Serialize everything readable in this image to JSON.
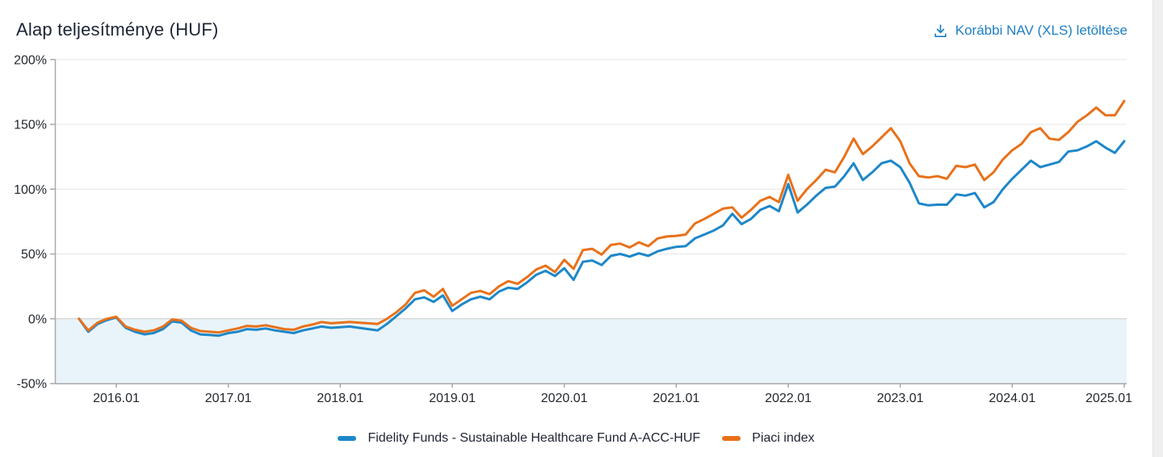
{
  "header": {
    "title": "Alap teljesítménye (HUF)",
    "download_link": {
      "label": "Korábbi NAV (XLS) letöltése",
      "icon": "download-icon"
    }
  },
  "colors": {
    "fund_line": "#1d87c9",
    "index_line": "#e8711a",
    "negative_area_fill": "#e9f4fa",
    "gridline": "#e6e6e6",
    "zero_line": "#c9c9c9",
    "axis_line": "#a9a9a9",
    "tick_label": "#23282e",
    "title_text": "#1c2434",
    "link": "#1e7fc2"
  },
  "chart_data": {
    "type": "line",
    "title": "Alap teljesítménye (HUF)",
    "x_unit": "month",
    "grid": "horizontal",
    "legend_position": "bottom",
    "negative_area_highlighted": true,
    "ylim": [
      -50,
      200
    ],
    "y_ticks": [
      200,
      150,
      100,
      50,
      0,
      -50
    ],
    "y_tick_suffix": "%",
    "x_tick_labels": [
      "2016.01",
      "2017.01",
      "2018.01",
      "2019.01",
      "2020.01",
      "2021.01",
      "2022.01",
      "2023.01",
      "2024.01",
      "2025.01"
    ],
    "x": [
      "2015-09",
      "2015-10",
      "2015-11",
      "2015-12",
      "2016-01",
      "2016-02",
      "2016-03",
      "2016-04",
      "2016-05",
      "2016-06",
      "2016-07",
      "2016-08",
      "2016-09",
      "2016-10",
      "2016-11",
      "2016-12",
      "2017-01",
      "2017-02",
      "2017-03",
      "2017-04",
      "2017-05",
      "2017-06",
      "2017-07",
      "2017-08",
      "2017-09",
      "2017-10",
      "2017-11",
      "2017-12",
      "2018-01",
      "2018-02",
      "2018-03",
      "2018-04",
      "2018-05",
      "2018-06",
      "2018-07",
      "2018-08",
      "2018-09",
      "2018-10",
      "2018-11",
      "2018-12",
      "2019-01",
      "2019-02",
      "2019-03",
      "2019-04",
      "2019-05",
      "2019-06",
      "2019-07",
      "2019-08",
      "2019-09",
      "2019-10",
      "2019-11",
      "2019-12",
      "2020-01",
      "2020-02",
      "2020-03",
      "2020-04",
      "2020-05",
      "2020-06",
      "2020-07",
      "2020-08",
      "2020-09",
      "2020-10",
      "2020-11",
      "2020-12",
      "2021-01",
      "2021-02",
      "2021-03",
      "2021-04",
      "2021-05",
      "2021-06",
      "2021-07",
      "2021-08",
      "2021-09",
      "2021-10",
      "2021-11",
      "2021-12",
      "2022-01",
      "2022-02",
      "2022-03",
      "2022-04",
      "2022-05",
      "2022-06",
      "2022-07",
      "2022-08",
      "2022-09",
      "2022-10",
      "2022-11",
      "2022-12",
      "2023-01",
      "2023-02",
      "2023-03",
      "2023-04",
      "2023-05",
      "2023-06",
      "2023-07",
      "2023-08",
      "2023-09",
      "2023-10",
      "2023-11",
      "2023-12",
      "2024-01",
      "2024-02",
      "2024-03",
      "2024-04",
      "2024-05",
      "2024-06",
      "2024-07",
      "2024-08",
      "2024-09",
      "2024-10",
      "2024-11",
      "2024-12",
      "2025-01"
    ],
    "series": [
      {
        "id": "fund",
        "name": "Fidelity Funds - Sustainable Healthcare Fund A-ACC-HUF",
        "color": "#1d87c9",
        "values": [
          0,
          -10,
          -4,
          -1,
          1,
          -7,
          -10,
          -12,
          -11,
          -8,
          -2,
          -3,
          -9,
          -12,
          -12.5,
          -13,
          -11,
          -10,
          -8,
          -8.5,
          -7.5,
          -9,
          -10,
          -11,
          -9,
          -7.5,
          -6,
          -7,
          -6.5,
          -6,
          -7,
          -8,
          -9,
          -4,
          2,
          8,
          15,
          16.5,
          13,
          18,
          6,
          11,
          15,
          17,
          15,
          21,
          24,
          23,
          28,
          34,
          37,
          33,
          39,
          30,
          44,
          45,
          41.5,
          48.5,
          50,
          48,
          50.5,
          48.5,
          52,
          54,
          55.5,
          56,
          62,
          65,
          68,
          72,
          81,
          73,
          77,
          84,
          87,
          83,
          104,
          82,
          88,
          95,
          101,
          102,
          110,
          120,
          107,
          113,
          120,
          122,
          117,
          105,
          89,
          87.5,
          88,
          88,
          96,
          95,
          97,
          86,
          90,
          100,
          108,
          115,
          122,
          117,
          119,
          121,
          129,
          130,
          133,
          137,
          132,
          128,
          137
        ]
      },
      {
        "id": "market-index",
        "name": "Piaci index",
        "color": "#e8711a",
        "values": [
          0,
          -9,
          -3,
          0,
          1.5,
          -6,
          -8.5,
          -10,
          -9,
          -6,
          -0.5,
          -1.5,
          -7,
          -9.5,
          -10,
          -10.5,
          -9,
          -7.5,
          -5.5,
          -6,
          -5,
          -6.5,
          -8,
          -8.5,
          -6,
          -4.5,
          -2.5,
          -3.5,
          -3,
          -2.5,
          -3,
          -3.5,
          -4,
          0,
          5,
          11,
          20,
          22,
          17,
          23,
          10,
          15,
          20,
          21.5,
          19,
          25,
          29,
          27,
          32,
          38,
          41,
          36,
          45.5,
          38.5,
          53,
          54,
          49.5,
          57,
          58,
          55,
          59,
          56,
          62,
          63.5,
          64,
          65,
          73.5,
          77,
          81,
          85,
          86,
          78,
          84,
          91,
          94,
          90,
          111,
          91,
          100,
          107,
          115,
          113,
          125,
          139,
          127,
          133,
          140,
          147,
          137,
          120,
          110,
          109,
          110,
          108,
          118,
          117,
          119,
          107,
          113,
          123,
          130,
          135,
          144,
          147,
          139,
          138,
          144,
          152,
          157,
          163,
          157,
          157,
          168
        ]
      }
    ]
  },
  "legend": {
    "items": [
      {
        "label": "Fidelity Funds - Sustainable Healthcare Fund A-ACC-HUF",
        "color": "#1d87c9"
      },
      {
        "label": "Piaci index",
        "color": "#e8711a"
      }
    ]
  }
}
